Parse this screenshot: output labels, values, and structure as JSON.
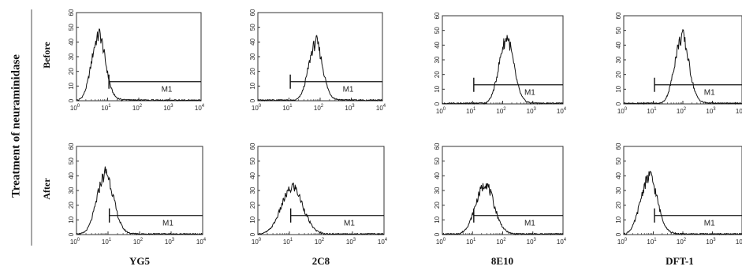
{
  "figure": {
    "side_title": "Treatment of neuraminidase",
    "row_labels": [
      "Before",
      "After"
    ],
    "column_labels": [
      "YG5",
      "2C8",
      "8E10",
      "DFT-1"
    ],
    "colors": {
      "line": "#111111",
      "divider": "#888888",
      "frame": "#333333"
    }
  },
  "chart_data": [
    {
      "type": "area",
      "row": "Before",
      "antibody": "YG5",
      "xscale": "log",
      "xlim": [
        1,
        10000
      ],
      "ylim": [
        0,
        60
      ],
      "x_ticks": [
        "10^0",
        "10^1",
        "10^2",
        "10^3",
        "10^4"
      ],
      "y_ticks": [
        0,
        10,
        20,
        30,
        40,
        50,
        60
      ],
      "gate": {
        "label": "M1",
        "from": 11,
        "to": 10000,
        "level": 13
      },
      "peak_x": 5,
      "peak_y": 43,
      "sigma_log": 0.22
    },
    {
      "type": "area",
      "row": "Before",
      "antibody": "2C8",
      "xscale": "log",
      "xlim": [
        1,
        10000
      ],
      "ylim": [
        0,
        60
      ],
      "x_ticks": [
        "10^0",
        "10^1",
        "10^2",
        "10^3",
        "10^4"
      ],
      "y_ticks": [
        0,
        10,
        20,
        30,
        40,
        50,
        60
      ],
      "gate": {
        "label": "M1",
        "from": 11,
        "to": 10000,
        "level": 13
      },
      "peak_x": 70,
      "peak_y": 38,
      "sigma_log": 0.22
    },
    {
      "type": "area",
      "row": "Before",
      "antibody": "8E10",
      "xscale": "log",
      "xlim": [
        1,
        10000
      ],
      "ylim": [
        0,
        60
      ],
      "x_ticks": [
        "10^0",
        "10^1",
        "10^2",
        "10^3",
        "10^4"
      ],
      "y_ticks": [
        0,
        10,
        20,
        30,
        40,
        50,
        60
      ],
      "gate": {
        "label": "M1",
        "from": 11,
        "to": 10000,
        "level": 13
      },
      "peak_x": 130,
      "peak_y": 43,
      "sigma_log": 0.24
    },
    {
      "type": "area",
      "row": "Before",
      "antibody": "DFT-1",
      "xscale": "log",
      "xlim": [
        1,
        10000
      ],
      "ylim": [
        0,
        60
      ],
      "x_ticks": [
        "10^0",
        "10^1",
        "10^2",
        "10^3",
        "10^4"
      ],
      "y_ticks": [
        0,
        10,
        20,
        30,
        40,
        50,
        60
      ],
      "gate": {
        "label": "M1",
        "from": 11,
        "to": 10000,
        "level": 13
      },
      "peak_x": 90,
      "peak_y": 44,
      "sigma_log": 0.24
    },
    {
      "type": "area",
      "row": "After",
      "antibody": "YG5",
      "xscale": "log",
      "xlim": [
        1,
        10000
      ],
      "ylim": [
        0,
        60
      ],
      "x_ticks": [
        "10^0",
        "10^1",
        "10^2",
        "10^3",
        "10^4"
      ],
      "y_ticks": [
        0,
        10,
        20,
        30,
        40,
        50,
        60
      ],
      "gate": {
        "label": "M1",
        "from": 11,
        "to": 10000,
        "level": 13
      },
      "peak_x": 8,
      "peak_y": 40,
      "sigma_log": 0.26
    },
    {
      "type": "area",
      "row": "After",
      "antibody": "2C8",
      "xscale": "log",
      "xlim": [
        1,
        10000
      ],
      "ylim": [
        0,
        60
      ],
      "x_ticks": [
        "10^0",
        "10^1",
        "10^2",
        "10^3",
        "10^4"
      ],
      "y_ticks": [
        0,
        10,
        20,
        30,
        40,
        50,
        60
      ],
      "gate": {
        "label": "M1",
        "from": 11,
        "to": 10000,
        "level": 13
      },
      "peak_x": 12,
      "peak_y": 31,
      "sigma_log": 0.34
    },
    {
      "type": "area",
      "row": "After",
      "antibody": "8E10",
      "xscale": "log",
      "xlim": [
        1,
        10000
      ],
      "ylim": [
        0,
        60
      ],
      "x_ticks": [
        "10^0",
        "10^1",
        "10^2",
        "10^3",
        "10^4"
      ],
      "y_ticks": [
        0,
        10,
        20,
        30,
        40,
        50,
        60
      ],
      "gate": {
        "label": "M1",
        "from": 11,
        "to": 10000,
        "level": 13
      },
      "peak_x": 25,
      "peak_y": 33,
      "sigma_log": 0.3
    },
    {
      "type": "area",
      "row": "After",
      "antibody": "DFT-1",
      "xscale": "log",
      "xlim": [
        1,
        10000
      ],
      "ylim": [
        0,
        60
      ],
      "x_ticks": [
        "10^0",
        "10^1",
        "10^2",
        "10^3",
        "10^4"
      ],
      "y_ticks": [
        0,
        10,
        20,
        30,
        40,
        50,
        60
      ],
      "gate": {
        "label": "M1",
        "from": 11,
        "to": 10000,
        "level": 13
      },
      "peak_x": 7,
      "peak_y": 38,
      "sigma_log": 0.28
    }
  ]
}
